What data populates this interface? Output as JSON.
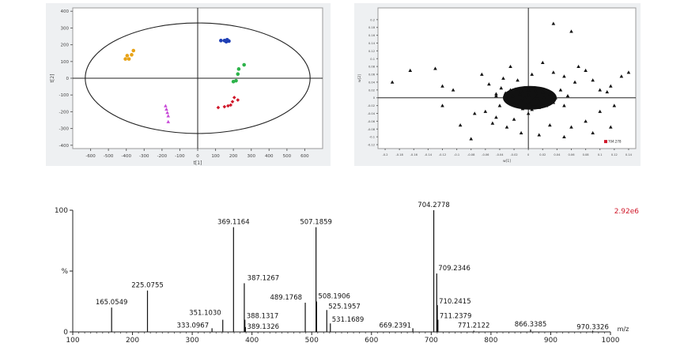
{
  "chart_data": [
    {
      "type": "scatter",
      "title": "",
      "xlabel": "t[1]",
      "ylabel": "t[2]",
      "xlim": [
        -700,
        700
      ],
      "ylim": [
        -420,
        420
      ],
      "xticks": [
        -600,
        -500,
        -400,
        -300,
        -200,
        -100,
        0,
        100,
        200,
        300,
        400,
        500,
        600
      ],
      "yticks": [
        400,
        300,
        200,
        100,
        0,
        -100,
        -200,
        -300,
        -400
      ],
      "ellipse": {
        "rx": 630,
        "ry": 330
      },
      "grid": true,
      "series": [
        {
          "color": "#e8a317",
          "marker": "circle",
          "points": [
            [
              -405,
              115
            ],
            [
              -385,
              115
            ],
            [
              -370,
              140
            ],
            [
              -395,
              135
            ],
            [
              -360,
              165
            ]
          ]
        },
        {
          "color": "#1f3fb5",
          "marker": "circle",
          "points": [
            [
              130,
              225
            ],
            [
              150,
              225
            ],
            [
              160,
              218
            ],
            [
              175,
              222
            ],
            [
              165,
              230
            ]
          ]
        },
        {
          "color": "#2db34a",
          "marker": "circle",
          "points": [
            [
              200,
              -20
            ],
            [
              215,
              -15
            ],
            [
              225,
              25
            ],
            [
              230,
              55
            ],
            [
              260,
              80
            ]
          ]
        },
        {
          "color": "#d0182a",
          "marker": "diamond",
          "points": [
            [
              115,
              -175
            ],
            [
              150,
              -170
            ],
            [
              170,
              -165
            ],
            [
              185,
              -160
            ],
            [
              195,
              -140
            ],
            [
              205,
              -115
            ],
            [
              225,
              -130
            ]
          ]
        },
        {
          "color": "#c84ad8",
          "marker": "triangle",
          "points": [
            [
              -180,
              -165
            ],
            [
              -175,
              -185
            ],
            [
              -170,
              -205
            ],
            [
              -165,
              -225
            ],
            [
              -165,
              -260
            ]
          ]
        }
      ]
    },
    {
      "type": "scatter",
      "title": "",
      "xlabel": "w[1]",
      "ylabel": "w[2]",
      "xlim": [
        -0.21,
        0.15
      ],
      "ylim": [
        -0.13,
        0.23
      ],
      "xticks": [
        -0.2,
        -0.18,
        -0.16,
        -0.14,
        -0.12,
        -0.1,
        -0.08,
        -0.06,
        -0.04,
        -0.02,
        0.0,
        0.02,
        0.04,
        0.06,
        0.08,
        0.1,
        0.12,
        0.14
      ],
      "yticks": [
        0.2,
        0.18,
        0.16,
        0.14,
        0.12,
        0.1,
        0.08,
        0.06,
        0.04,
        0.02,
        0.0,
        -0.02,
        -0.04,
        -0.06,
        -0.08,
        -0.1,
        -0.12
      ],
      "marker": "triangle",
      "color": "#111111",
      "highlight": {
        "x": 0.108,
        "y": -0.112,
        "label": "704.278",
        "color": "#d0182a"
      },
      "points": [
        [
          -0.19,
          0.04
        ],
        [
          -0.165,
          0.07
        ],
        [
          -0.13,
          0.075
        ],
        [
          -0.12,
          0.03
        ],
        [
          -0.105,
          0.02
        ],
        [
          -0.12,
          -0.02
        ],
        [
          -0.095,
          -0.07
        ],
        [
          -0.065,
          0.06
        ],
        [
          -0.055,
          0.035
        ],
        [
          -0.045,
          0.01
        ],
        [
          -0.035,
          0.05
        ],
        [
          -0.025,
          0.08
        ],
        [
          -0.015,
          0.045
        ],
        [
          0.005,
          0.06
        ],
        [
          0.02,
          0.09
        ],
        [
          0.035,
          0.065
        ],
        [
          0.05,
          0.055
        ],
        [
          0.065,
          0.04
        ],
        [
          0.08,
          0.07
        ],
        [
          0.09,
          0.045
        ],
        [
          0.1,
          0.02
        ],
        [
          0.115,
          0.03
        ],
        [
          0.13,
          0.055
        ],
        [
          0.14,
          0.065
        ],
        [
          0.035,
          0.19
        ],
        [
          0.06,
          0.17
        ],
        [
          0.07,
          0.08
        ],
        [
          0.11,
          0.015
        ],
        [
          0.12,
          -0.02
        ],
        [
          0.1,
          -0.035
        ],
        [
          0.08,
          -0.06
        ],
        [
          0.06,
          -0.075
        ],
        [
          0.09,
          -0.09
        ],
        [
          0.115,
          -0.075
        ],
        [
          0.05,
          -0.1
        ],
        [
          0.03,
          -0.07
        ],
        [
          0.015,
          -0.095
        ],
        [
          -0.01,
          -0.09
        ],
        [
          -0.03,
          -0.075
        ],
        [
          -0.05,
          -0.065
        ],
        [
          -0.08,
          -0.105
        ],
        [
          -0.075,
          -0.04
        ],
        [
          -0.06,
          -0.035
        ],
        [
          -0.045,
          -0.05
        ],
        [
          -0.02,
          -0.055
        ],
        [
          0.0,
          -0.04
        ],
        [
          -0.015,
          -0.02
        ],
        [
          -0.028,
          0.0
        ],
        [
          -0.032,
          0.012
        ],
        [
          -0.025,
          0.02
        ],
        [
          -0.018,
          0.022
        ],
        [
          -0.01,
          0.018
        ],
        [
          0.0,
          0.02
        ],
        [
          0.01,
          0.018
        ],
        [
          0.02,
          0.015
        ],
        [
          0.03,
          0.01
        ],
        [
          0.038,
          0.0
        ],
        [
          0.035,
          -0.012
        ],
        [
          0.025,
          -0.02
        ],
        [
          0.015,
          -0.025
        ],
        [
          0.005,
          -0.03
        ],
        [
          -0.008,
          -0.028
        ],
        [
          -0.02,
          -0.015
        ],
        [
          -0.03,
          -0.008
        ],
        [
          -0.022,
          0.005
        ],
        [
          -0.012,
          0.01
        ],
        [
          0.0,
          0.008
        ],
        [
          0.012,
          0.005
        ],
        [
          0.022,
          0.0
        ],
        [
          0.015,
          -0.01
        ],
        [
          0.002,
          -0.015
        ],
        [
          -0.01,
          -0.008
        ],
        [
          -0.005,
          0.0
        ],
        [
          0.008,
          -0.003
        ],
        [
          0.045,
          0.02
        ],
        [
          0.055,
          0.005
        ],
        [
          0.05,
          -0.02
        ],
        [
          -0.04,
          -0.02
        ],
        [
          -0.045,
          0.005
        ],
        [
          -0.038,
          0.025
        ]
      ]
    },
    {
      "type": "bar",
      "title": "",
      "xlabel": "m/z",
      "ylabel": "%",
      "xlim": [
        100,
        1000
      ],
      "ylim": [
        0,
        100
      ],
      "xticks": [
        100,
        200,
        300,
        400,
        500,
        600,
        700,
        800,
        900,
        1000
      ],
      "xtick_labels": [
        "100",
        "200",
        "300",
        "400",
        "500",
        "600",
        "700",
        "800",
        "900",
        "1000"
      ],
      "yticks": [
        100,
        50,
        0
      ],
      "ytick_labels": [
        "100",
        "%",
        "0"
      ],
      "intensity_label": "2.92e6",
      "peaks": [
        {
          "mz": 165.0549,
          "value": 20,
          "label": "165.0549"
        },
        {
          "mz": 225.0755,
          "value": 34,
          "label": "225.0755"
        },
        {
          "mz": 333.0967,
          "value": 3,
          "label": "333.0967"
        },
        {
          "mz": 351.103,
          "value": 10,
          "label": "351.1030"
        },
        {
          "mz": 369.1164,
          "value": 86,
          "label": "369.1164"
        },
        {
          "mz": 387.1267,
          "value": 40,
          "label": "387.1267"
        },
        {
          "mz": 388.1317,
          "value": 10,
          "label": "388.1317"
        },
        {
          "mz": 389.1326,
          "value": 4,
          "label": "389.1326"
        },
        {
          "mz": 489.1768,
          "value": 24,
          "label": "489.1768"
        },
        {
          "mz": 507.1859,
          "value": 86,
          "label": "507.1859"
        },
        {
          "mz": 508.1906,
          "value": 25,
          "label": "508.1906"
        },
        {
          "mz": 525.1957,
          "value": 18,
          "label": "525.1957"
        },
        {
          "mz": 531.1689,
          "value": 7,
          "label": "531.1689"
        },
        {
          "mz": 669.2391,
          "value": 3,
          "label": "669.2391"
        },
        {
          "mz": 704.2778,
          "value": 100,
          "label": "704.2778"
        },
        {
          "mz": 709.2346,
          "value": 48,
          "label": "709.2346"
        },
        {
          "mz": 710.2415,
          "value": 22,
          "label": "710.2415"
        },
        {
          "mz": 711.2379,
          "value": 10,
          "label": "711.2379"
        },
        {
          "mz": 771.2122,
          "value": 1,
          "label": "771.2122"
        },
        {
          "mz": 866.3385,
          "value": 2,
          "label": "866.3385"
        },
        {
          "mz": 970.3326,
          "value": 1,
          "label": "970.3326"
        }
      ]
    }
  ]
}
